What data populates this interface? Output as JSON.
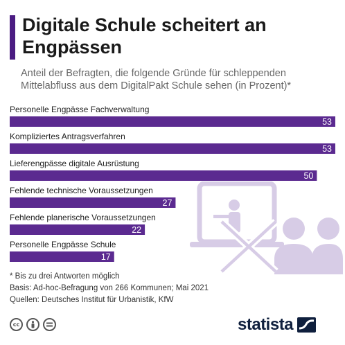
{
  "header": {
    "title": "Digitale Schule scheitert an Engpässen",
    "subtitle": "Anteil der Befragten, die folgende Gründe für schleppenden Mittelabfluss aus dem DigitalPakt Schule sehen (in Prozent)*"
  },
  "colors": {
    "accent": "#4b1c82",
    "bar": "#5b2a90",
    "illustration": "#d7cce6"
  },
  "chart_data": {
    "type": "bar",
    "orientation": "horizontal",
    "categories": [
      "Personelle Engpässe Fachverwaltung",
      "Kompliziertes Antragsverfahren",
      "Lieferengpässe digitale Ausrüstung",
      "Fehlende technische Voraussetzungen",
      "Fehlende planerische Voraussetzungen",
      "Personelle Engpässe Schule"
    ],
    "values": [
      53,
      53,
      50,
      27,
      22,
      17
    ],
    "data_labels": [
      "53",
      "53",
      "50",
      "27",
      "22",
      "17"
    ],
    "xlim": [
      0,
      53
    ],
    "grid": false,
    "legend": "none"
  },
  "footer": {
    "note": "* Bis zu drei Antworten möglich",
    "basis": "Basis: Ad-hoc-Befragung von 266 Kommunen; Mai 2021",
    "sources": "Quellen: Deutsches Institut für Urbanistik, KfW",
    "license_icons": [
      "cc-icon",
      "by-icon",
      "nd-icon"
    ],
    "brand": "statista"
  }
}
